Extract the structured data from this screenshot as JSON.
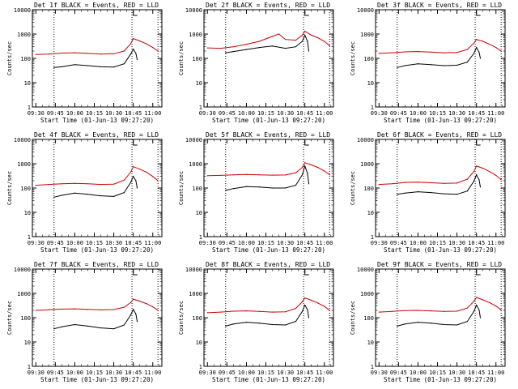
{
  "chart_data": [
    {
      "type": "line",
      "title": "Det 1f BLACK = Events, RED = LLD",
      "ylabel": "Counts/sec",
      "xlabel": "Start Time (01-Jun-13 09:27:20)",
      "xticks": [
        "09:30",
        "09:45",
        "10:00",
        "10:15",
        "10:30",
        "10:45",
        "11:00"
      ],
      "yticks": [
        "1",
        "10",
        "100",
        "1000",
        "10000"
      ],
      "ylim": [
        1,
        10000
      ],
      "log_y": true,
      "series": [
        {
          "name": "Events",
          "color": "#000000",
          "x": [
            "09:44",
            "09:50",
            "10:00",
            "10:10",
            "10:20",
            "10:30",
            "10:38",
            "10:43",
            "10:45",
            "10:47",
            "10:48"
          ],
          "values": [
            42,
            45,
            55,
            50,
            45,
            44,
            60,
            150,
            240,
            160,
            90
          ]
        },
        {
          "name": "LLD",
          "color": "#cc0000",
          "x": [
            "09:30",
            "09:40",
            "09:50",
            "10:00",
            "10:10",
            "10:20",
            "10:30",
            "10:38",
            "10:43",
            "10:45",
            "10:50",
            "10:55",
            "11:00",
            "11:04"
          ],
          "values": [
            145,
            150,
            165,
            170,
            160,
            150,
            155,
            200,
            400,
            650,
            520,
            400,
            280,
            200
          ]
        }
      ]
    },
    {
      "type": "line",
      "title": "Det 2f BLACK = Events, RED = LLD",
      "ylabel": "Counts/sec",
      "xlabel": "Start Time (01-Jun-13 09:27:20)",
      "xticks": [
        "09:30",
        "09:45",
        "10:00",
        "10:15",
        "10:30",
        "10:45",
        "11:00"
      ],
      "yticks": [
        "1",
        "10",
        "100",
        "1000",
        "10000"
      ],
      "ylim": [
        1,
        10000
      ],
      "log_y": true,
      "series": [
        {
          "name": "Events",
          "color": "#000000",
          "x": [
            "09:44",
            "09:50",
            "10:00",
            "10:10",
            "10:20",
            "10:30",
            "10:38",
            "10:43",
            "10:45",
            "10:47",
            "10:48"
          ],
          "values": [
            170,
            190,
            230,
            280,
            320,
            260,
            300,
            500,
            900,
            500,
            200
          ]
        },
        {
          "name": "LLD",
          "color": "#cc0000",
          "x": [
            "09:30",
            "09:40",
            "09:50",
            "10:00",
            "10:10",
            "10:20",
            "10:25",
            "10:30",
            "10:38",
            "10:43",
            "10:45",
            "10:50",
            "10:55",
            "11:00",
            "11:04"
          ],
          "values": [
            270,
            260,
            300,
            380,
            500,
            800,
            1000,
            600,
            560,
            900,
            1300,
            900,
            700,
            500,
            330
          ]
        }
      ]
    },
    {
      "type": "line",
      "title": "Det 3f BLACK = Events, RED = LLD",
      "ylabel": "Counts/sec",
      "xlabel": "Start Time (01-Jun-13 09:27:20)",
      "xticks": [
        "09:30",
        "09:45",
        "10:00",
        "10:15",
        "10:30",
        "10:45",
        "11:00"
      ],
      "yticks": [
        "1",
        "10",
        "100",
        "1000",
        "10000"
      ],
      "ylim": [
        1,
        10000
      ],
      "log_y": true,
      "series": [
        {
          "name": "Events",
          "color": "#000000",
          "x": [
            "09:44",
            "09:50",
            "10:00",
            "10:10",
            "10:20",
            "10:30",
            "10:38",
            "10:43",
            "10:45",
            "10:47",
            "10:48"
          ],
          "values": [
            42,
            50,
            60,
            55,
            50,
            52,
            70,
            160,
            280,
            180,
            100
          ]
        },
        {
          "name": "LLD",
          "color": "#cc0000",
          "x": [
            "09:30",
            "09:40",
            "09:50",
            "10:00",
            "10:10",
            "10:20",
            "10:30",
            "10:38",
            "10:43",
            "10:45",
            "10:50",
            "10:55",
            "11:00",
            "11:04"
          ],
          "values": [
            160,
            170,
            185,
            190,
            180,
            170,
            175,
            230,
            420,
            600,
            500,
            380,
            280,
            200
          ]
        }
      ]
    },
    {
      "type": "line",
      "title": "Det 4f BLACK = Events, RED = LLD",
      "ylabel": "Counts/sec",
      "xlabel": "Start Time (01-Jun-13 09:27:20)",
      "xticks": [
        "09:30",
        "09:45",
        "10:00",
        "10:15",
        "10:30",
        "10:45",
        "11:00"
      ],
      "yticks": [
        "1",
        "10",
        "100",
        "1000",
        "10000"
      ],
      "ylim": [
        1,
        10000
      ],
      "log_y": true,
      "series": [
        {
          "name": "Events",
          "color": "#000000",
          "x": [
            "09:44",
            "09:50",
            "10:00",
            "10:10",
            "10:20",
            "10:30",
            "10:38",
            "10:43",
            "10:45",
            "10:47",
            "10:48"
          ],
          "values": [
            42,
            50,
            62,
            55,
            48,
            45,
            65,
            170,
            300,
            200,
            100
          ]
        },
        {
          "name": "LLD",
          "color": "#cc0000",
          "x": [
            "09:30",
            "09:40",
            "09:50",
            "10:00",
            "10:10",
            "10:20",
            "10:30",
            "10:38",
            "10:43",
            "10:45",
            "10:50",
            "10:55",
            "11:00",
            "11:04"
          ],
          "values": [
            130,
            140,
            150,
            155,
            150,
            140,
            145,
            210,
            450,
            750,
            600,
            450,
            300,
            200
          ]
        }
      ]
    },
    {
      "type": "line",
      "title": "Det 5f BLACK = Events, RED = LLD",
      "ylabel": "Counts/sec",
      "xlabel": "Start Time (01-Jun-13 09:27:20)",
      "xticks": [
        "09:30",
        "09:45",
        "10:00",
        "10:15",
        "10:30",
        "10:45",
        "11:00"
      ],
      "yticks": [
        "1",
        "10",
        "100",
        "1000",
        "10000"
      ],
      "ylim": [
        1,
        10000
      ],
      "log_y": true,
      "series": [
        {
          "name": "Events",
          "color": "#000000",
          "x": [
            "09:44",
            "09:50",
            "10:00",
            "10:10",
            "10:20",
            "10:30",
            "10:38",
            "10:43",
            "10:45",
            "10:47",
            "10:48"
          ],
          "values": [
            80,
            95,
            115,
            110,
            100,
            100,
            130,
            350,
            800,
            400,
            150
          ]
        },
        {
          "name": "LLD",
          "color": "#cc0000",
          "x": [
            "09:30",
            "09:40",
            "09:50",
            "10:00",
            "10:10",
            "10:20",
            "10:30",
            "10:38",
            "10:43",
            "10:45",
            "10:50",
            "10:55",
            "11:00",
            "11:04"
          ],
          "values": [
            320,
            330,
            350,
            360,
            350,
            340,
            345,
            420,
            700,
            1100,
            900,
            700,
            500,
            350
          ]
        }
      ]
    },
    {
      "type": "line",
      "title": "Det 6f BLACK = Events, RED = LLD",
      "ylabel": "Counts/sec",
      "xlabel": "Start Time (01-Jun-13 09:27:20)",
      "xticks": [
        "09:30",
        "09:45",
        "10:00",
        "10:15",
        "10:30",
        "10:45",
        "11:00"
      ],
      "yticks": [
        "1",
        "10",
        "100",
        "1000",
        "10000"
      ],
      "ylim": [
        1,
        10000
      ],
      "log_y": true,
      "series": [
        {
          "name": "Events",
          "color": "#000000",
          "x": [
            "09:44",
            "09:50",
            "10:00",
            "10:10",
            "10:20",
            "10:30",
            "10:38",
            "10:43",
            "10:45",
            "10:47",
            "10:48"
          ],
          "values": [
            55,
            62,
            70,
            65,
            58,
            55,
            75,
            190,
            350,
            220,
            110
          ]
        },
        {
          "name": "LLD",
          "color": "#cc0000",
          "x": [
            "09:30",
            "09:40",
            "09:50",
            "10:00",
            "10:10",
            "10:20",
            "10:30",
            "10:38",
            "10:43",
            "10:45",
            "10:50",
            "10:55",
            "11:00",
            "11:04"
          ],
          "values": [
            140,
            150,
            170,
            175,
            165,
            155,
            160,
            230,
            480,
            800,
            650,
            480,
            330,
            220
          ]
        }
      ]
    },
    {
      "type": "line",
      "title": "Det 7f BLACK = Events, RED = LLD",
      "ylabel": "Counts/sec",
      "xlabel": "Start Time (01-Jun-13 09:27:20)",
      "xticks": [
        "09:30",
        "09:45",
        "10:00",
        "10:15",
        "10:30",
        "10:45",
        "11:00"
      ],
      "yticks": [
        "1",
        "10",
        "100",
        "1000",
        "10000"
      ],
      "ylim": [
        1,
        10000
      ],
      "log_y": true,
      "series": [
        {
          "name": "Events",
          "color": "#000000",
          "x": [
            "09:44",
            "09:50",
            "10:00",
            "10:10",
            "10:20",
            "10:30",
            "10:38",
            "10:43",
            "10:45",
            "10:47",
            "10:48"
          ],
          "values": [
            35,
            42,
            52,
            45,
            38,
            35,
            50,
            130,
            220,
            140,
            70
          ]
        },
        {
          "name": "LLD",
          "color": "#cc0000",
          "x": [
            "09:30",
            "09:40",
            "09:50",
            "10:00",
            "10:10",
            "10:20",
            "10:30",
            "10:38",
            "10:43",
            "10:45",
            "10:50",
            "10:55",
            "11:00",
            "11:04"
          ],
          "values": [
            200,
            210,
            225,
            230,
            220,
            210,
            215,
            270,
            420,
            580,
            480,
            380,
            280,
            200
          ]
        }
      ]
    },
    {
      "type": "line",
      "title": "Det 8f BLACK = Events, RED = LLD",
      "ylabel": "Counts/sec",
      "xlabel": "Start Time (01-Jun-13 09:27:20)",
      "xticks": [
        "09:30",
        "09:45",
        "10:00",
        "10:15",
        "10:30",
        "10:45",
        "11:00"
      ],
      "yticks": [
        "1",
        "10",
        "100",
        "1000",
        "10000"
      ],
      "ylim": [
        1,
        10000
      ],
      "log_y": true,
      "series": [
        {
          "name": "Events",
          "color": "#000000",
          "x": [
            "09:44",
            "09:50",
            "10:00",
            "10:10",
            "10:20",
            "10:30",
            "10:38",
            "10:43",
            "10:45",
            "10:47",
            "10:48"
          ],
          "values": [
            45,
            55,
            65,
            60,
            52,
            50,
            70,
            180,
            330,
            210,
            100
          ]
        },
        {
          "name": "LLD",
          "color": "#cc0000",
          "x": [
            "09:30",
            "09:40",
            "09:50",
            "10:00",
            "10:10",
            "10:20",
            "10:30",
            "10:38",
            "10:43",
            "10:45",
            "10:50",
            "10:55",
            "11:00",
            "11:04"
          ],
          "values": [
            160,
            170,
            185,
            190,
            180,
            170,
            175,
            240,
            450,
            650,
            520,
            400,
            290,
            200
          ]
        }
      ]
    },
    {
      "type": "line",
      "title": "Det 9f BLACK = Events, RED = LLD",
      "ylabel": "Counts/sec",
      "xlabel": "Start Time (01-Jun-13 09:27:20)",
      "xticks": [
        "09:30",
        "09:45",
        "10:00",
        "10:15",
        "10:30",
        "10:45",
        "11:00"
      ],
      "yticks": [
        "1",
        "10",
        "100",
        "1000",
        "10000"
      ],
      "ylim": [
        1,
        10000
      ],
      "log_y": true,
      "series": [
        {
          "name": "Events",
          "color": "#000000",
          "x": [
            "09:44",
            "09:50",
            "10:00",
            "10:10",
            "10:20",
            "10:30",
            "10:38",
            "10:43",
            "10:45",
            "10:47",
            "10:48"
          ],
          "values": [
            45,
            55,
            65,
            60,
            52,
            50,
            70,
            180,
            330,
            210,
            100
          ]
        },
        {
          "name": "LLD",
          "color": "#cc0000",
          "x": [
            "09:30",
            "09:40",
            "09:50",
            "10:00",
            "10:10",
            "10:20",
            "10:30",
            "10:38",
            "10:43",
            "10:45",
            "10:50",
            "10:55",
            "11:00",
            "11:04"
          ],
          "values": [
            170,
            180,
            195,
            200,
            190,
            180,
            185,
            250,
            470,
            680,
            540,
            420,
            300,
            210
          ]
        }
      ]
    }
  ]
}
